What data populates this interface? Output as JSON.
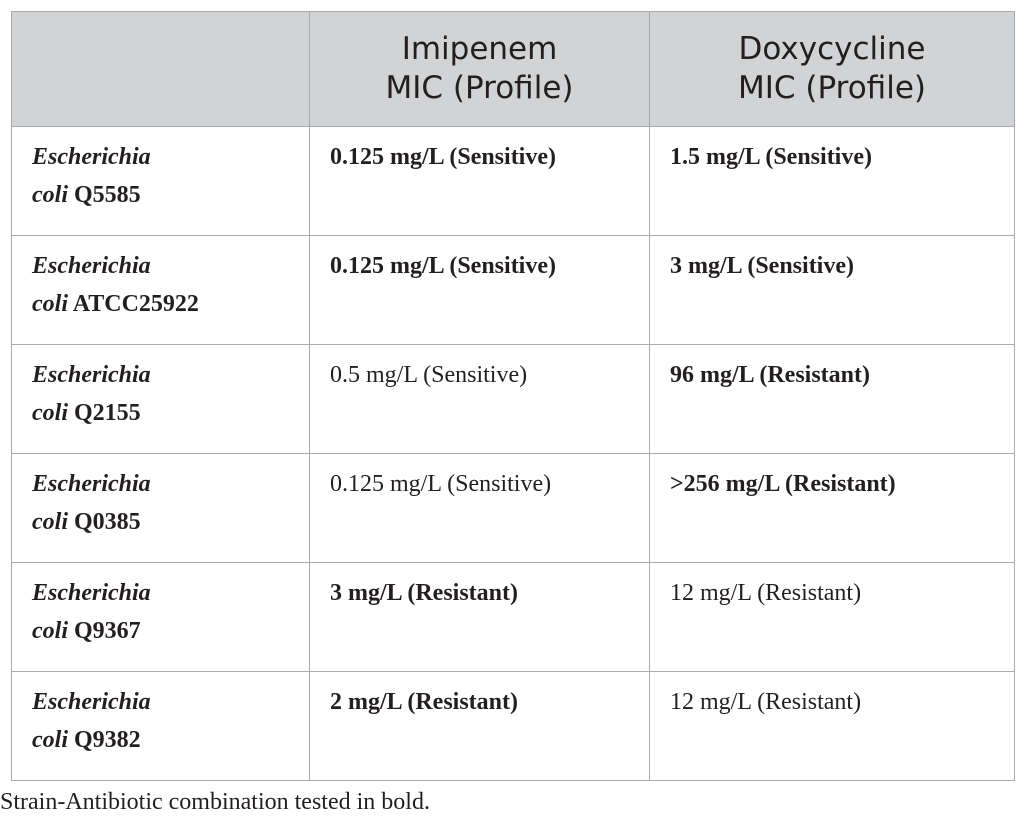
{
  "table": {
    "header": {
      "col1": "",
      "col2_line1": "Imipenem",
      "col2_line2": "MIC (Profile)",
      "col3_line1": "Doxycycline",
      "col3_line2": "MIC (Profile)"
    },
    "rows": [
      {
        "genus": "Escherichia",
        "species": "coli",
        "strain": "Q5585",
        "imipenem": "0.125 mg/L (Sensitive)",
        "imipenem_bold": true,
        "doxycycline": "1.5 mg/L (Sensitive)",
        "doxycycline_bold": true
      },
      {
        "genus": "Escherichia",
        "species": "coli",
        "strain": "ATCC25922",
        "imipenem": "0.125 mg/L (Sensitive)",
        "imipenem_bold": true,
        "doxycycline": "3 mg/L (Sensitive)",
        "doxycycline_bold": true
      },
      {
        "genus": "Escherichia",
        "species": "coli",
        "strain": "Q2155",
        "imipenem": "0.5 mg/L (Sensitive)",
        "imipenem_bold": false,
        "doxycycline": "96 mg/L (Resistant)",
        "doxycycline_bold": true
      },
      {
        "genus": "Escherichia",
        "species": "coli",
        "strain": "Q0385",
        "imipenem": "0.125 mg/L (Sensitive)",
        "imipenem_bold": false,
        "doxycycline": ">256 mg/L (Resistant)",
        "doxycycline_bold": true
      },
      {
        "genus": "Escherichia",
        "species": "coli",
        "strain": "Q9367",
        "imipenem": "3 mg/L (Resistant)",
        "imipenem_bold": true,
        "doxycycline": "12 mg/L (Resistant)",
        "doxycycline_bold": false
      },
      {
        "genus": "Escherichia",
        "species": "coli",
        "strain": "Q9382",
        "imipenem": "2 mg/L (Resistant)",
        "imipenem_bold": true,
        "doxycycline": "12 mg/L (Resistant)",
        "doxycycline_bold": false
      }
    ]
  },
  "footnote": "Strain-Antibiotic combination tested in bold."
}
